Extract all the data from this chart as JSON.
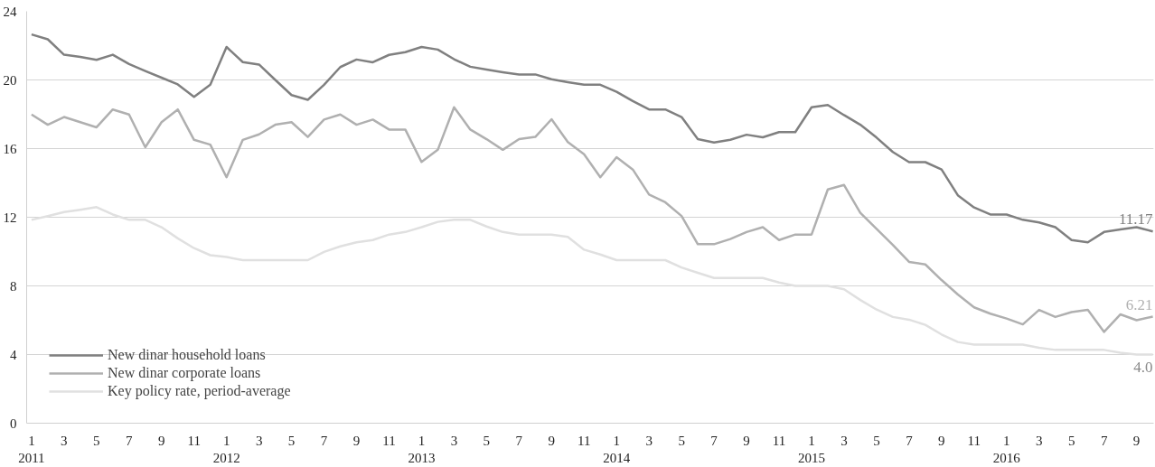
{
  "chart_data": {
    "type": "line",
    "categories": [
      "1\n2011",
      null,
      "3",
      null,
      "5",
      null,
      "7",
      null,
      "9",
      null,
      "11",
      null,
      "1\n2012",
      null,
      "3",
      null,
      "5",
      null,
      "7",
      null,
      "9",
      null,
      "11",
      null,
      "1\n2013",
      null,
      "3",
      null,
      "5",
      null,
      "7",
      null,
      "9",
      null,
      "11",
      null,
      "1\n2014",
      null,
      "3",
      null,
      "5",
      null,
      "7",
      null,
      "9",
      null,
      "11",
      null,
      "1\n2015",
      null,
      "3",
      null,
      "5",
      null,
      "7",
      null,
      "9",
      null,
      "11",
      null,
      "1\n2016",
      null,
      "3",
      null,
      "5",
      null,
      "7",
      null,
      "9",
      null
    ],
    "series": [
      {
        "name": "New dinar household loans",
        "color": "#808080",
        "values": [
          22.65,
          22.37,
          21.47,
          21.34,
          21.17,
          21.47,
          20.93,
          20.52,
          20.13,
          19.74,
          19.01,
          19.72,
          21.92,
          21.04,
          20.9,
          20.0,
          19.12,
          18.84,
          19.72,
          20.75,
          21.19,
          21.03,
          21.46,
          21.62,
          21.92,
          21.77,
          21.21,
          20.77,
          20.6,
          20.45,
          20.32,
          20.32,
          20.04,
          19.87,
          19.72,
          19.72,
          19.31,
          18.77,
          18.28,
          18.28,
          17.84,
          16.55,
          16.36,
          16.51,
          16.81,
          16.66,
          16.96,
          16.96,
          18.41,
          18.54,
          17.95,
          17.39,
          16.64,
          15.8,
          15.21,
          15.21,
          14.78,
          13.28,
          12.57,
          12.16,
          12.16,
          11.85,
          11.7,
          11.42,
          10.67,
          10.54,
          11.14,
          11.29,
          11.42,
          11.17
        ],
        "value_labels": [
          null,
          null,
          null,
          null,
          null,
          null,
          null,
          null,
          null,
          null,
          null,
          null,
          null,
          null,
          null,
          null,
          null,
          null,
          null,
          null,
          null,
          null,
          null,
          null,
          null,
          null,
          null,
          null,
          null,
          null,
          null,
          null,
          null,
          null,
          null,
          null,
          null,
          null,
          null,
          null,
          null,
          null,
          null,
          null,
          null,
          null,
          null,
          null,
          null,
          null,
          null,
          null,
          null,
          null,
          null,
          null,
          null,
          null,
          null,
          null,
          null,
          null,
          null,
          null,
          null,
          null,
          null,
          null,
          null,
          "11.17"
        ]
      },
      {
        "name": "New dinar corporate loans",
        "color": "#b0b0b0",
        "values": [
          17.99,
          17.39,
          17.84,
          17.54,
          17.24,
          18.28,
          17.99,
          16.08,
          17.54,
          18.28,
          16.51,
          16.23,
          14.33,
          16.51,
          16.83,
          17.39,
          17.54,
          16.68,
          17.69,
          17.99,
          17.39,
          17.69,
          17.11,
          17.11,
          15.22,
          15.93,
          18.41,
          17.11,
          16.55,
          15.93,
          16.55,
          16.68,
          17.71,
          16.38,
          15.67,
          14.33,
          15.5,
          14.78,
          13.32,
          12.87,
          12.07,
          10.43,
          10.43,
          10.73,
          11.14,
          11.42,
          10.67,
          10.99,
          10.99,
          13.62,
          13.88,
          12.26,
          11.32,
          10.39,
          9.4,
          9.25,
          8.34,
          7.5,
          6.75,
          6.38,
          6.1,
          5.76,
          6.6,
          6.19,
          6.47,
          6.6,
          5.32,
          6.34,
          6.0,
          6.21
        ],
        "value_labels": [
          null,
          null,
          null,
          null,
          null,
          null,
          null,
          null,
          null,
          null,
          null,
          null,
          null,
          null,
          null,
          null,
          null,
          null,
          null,
          null,
          null,
          null,
          null,
          null,
          null,
          null,
          null,
          null,
          null,
          null,
          null,
          null,
          null,
          null,
          null,
          null,
          null,
          null,
          null,
          null,
          null,
          null,
          null,
          null,
          null,
          null,
          null,
          null,
          null,
          null,
          null,
          null,
          null,
          null,
          null,
          null,
          null,
          null,
          null,
          null,
          null,
          null,
          null,
          null,
          null,
          null,
          null,
          null,
          null,
          "6.21"
        ]
      },
      {
        "name": "Key policy rate, period-average",
        "color": "#e0e0e0",
        "values": [
          11.85,
          12.07,
          12.3,
          12.44,
          12.59,
          12.16,
          11.85,
          11.85,
          11.42,
          10.77,
          10.2,
          9.79,
          9.68,
          9.5,
          9.5,
          9.5,
          9.5,
          9.5,
          9.98,
          10.3,
          10.54,
          10.67,
          10.99,
          11.14,
          11.42,
          11.73,
          11.85,
          11.85,
          11.46,
          11.14,
          10.99,
          10.99,
          10.99,
          10.86,
          10.11,
          9.83,
          9.5,
          9.5,
          9.5,
          9.5,
          9.07,
          8.76,
          8.46,
          8.46,
          8.46,
          8.46,
          8.2,
          8.0,
          8.0,
          8.0,
          7.8,
          7.18,
          6.62,
          6.19,
          6.03,
          5.73,
          5.17,
          4.73,
          4.58,
          4.58,
          4.58,
          4.58,
          4.4,
          4.27,
          4.27,
          4.27,
          4.27,
          4.1,
          4.0,
          4.0
        ],
        "value_labels": [
          null,
          null,
          null,
          null,
          null,
          null,
          null,
          null,
          null,
          null,
          null,
          null,
          null,
          null,
          null,
          null,
          null,
          null,
          null,
          null,
          null,
          null,
          null,
          null,
          null,
          null,
          null,
          null,
          null,
          null,
          null,
          null,
          null,
          null,
          null,
          null,
          null,
          null,
          null,
          null,
          null,
          null,
          null,
          null,
          null,
          null,
          null,
          null,
          null,
          null,
          null,
          null,
          null,
          null,
          null,
          null,
          null,
          null,
          null,
          null,
          null,
          null,
          null,
          null,
          null,
          null,
          null,
          null,
          null,
          "4.0"
        ]
      }
    ],
    "ylim": [
      0,
      24
    ],
    "yticks": [
      0,
      4,
      8,
      12,
      16,
      20,
      24
    ],
    "grid": "y",
    "legend": "bottom left",
    "marker": "none",
    "line_style": "solid"
  }
}
